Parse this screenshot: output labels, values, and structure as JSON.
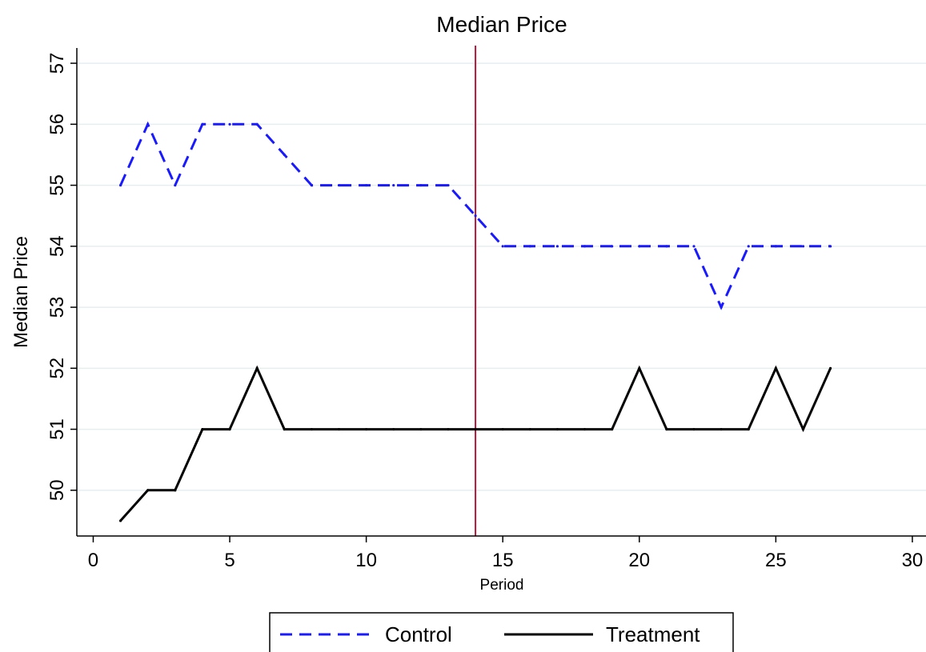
{
  "chart_data": {
    "type": "line",
    "title": "Median Price",
    "xlabel": "Period",
    "ylabel": "Median Price",
    "xlim": [
      -0.6,
      30.5
    ],
    "ylim": [
      49.25,
      57.25
    ],
    "xticks": [
      0,
      5,
      10,
      15,
      20,
      25,
      30
    ],
    "yticks": [
      50,
      51,
      52,
      53,
      54,
      55,
      56,
      57
    ],
    "grid": "horizontal",
    "legend_position": "bottom",
    "vline": {
      "x": 14,
      "color": "#b2183b"
    },
    "series": [
      {
        "name": "Control",
        "color": "#1a1aff",
        "dash": "dashed",
        "x": [
          1,
          2,
          3,
          4,
          5,
          6,
          7,
          8,
          9,
          10,
          11,
          12,
          13,
          14,
          15,
          16,
          17,
          18,
          19,
          20,
          21,
          22,
          23,
          24,
          25,
          26,
          27
        ],
        "values": [
          55,
          56,
          55,
          56,
          56,
          56,
          55.5,
          55,
          55,
          55,
          55,
          55,
          55,
          54.5,
          54,
          54,
          54,
          54,
          54,
          54,
          54,
          54,
          53,
          54,
          54,
          54,
          54
        ]
      },
      {
        "name": "Treatment",
        "color": "#000000",
        "dash": "solid",
        "x": [
          1,
          2,
          3,
          4,
          5,
          6,
          7,
          8,
          9,
          10,
          11,
          12,
          13,
          14,
          15,
          16,
          17,
          18,
          19,
          20,
          21,
          22,
          23,
          24,
          25,
          26,
          27
        ],
        "values": [
          49.5,
          50,
          50,
          51,
          51,
          52,
          51,
          51,
          51,
          51,
          51,
          51,
          51,
          51,
          51,
          51,
          51,
          51,
          51,
          52,
          51,
          51,
          51,
          51,
          52,
          51,
          52
        ]
      }
    ]
  }
}
